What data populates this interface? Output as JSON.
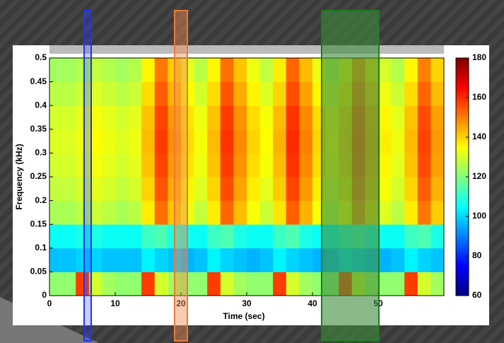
{
  "chart_data": {
    "type": "heatmap",
    "x_label": "Time (sec)",
    "y_label": "Frequency (kHz)",
    "x_bins": [
      0,
      2,
      4,
      6,
      8,
      10,
      12,
      14,
      16,
      18,
      20,
      22,
      24,
      26,
      28,
      30,
      32,
      34,
      36,
      38,
      40,
      42,
      44,
      46,
      48,
      50,
      52,
      54,
      56,
      58,
      60
    ],
    "y_bins": [
      0,
      0.05,
      0.1,
      0.15,
      0.2,
      0.25,
      0.3,
      0.35,
      0.4,
      0.45,
      0.5
    ],
    "z": [
      [
        122,
        122,
        158,
        130,
        124,
        122,
        122,
        158,
        130,
        124,
        122,
        122,
        158,
        130,
        124,
        122,
        122,
        158,
        130,
        124,
        122,
        122,
        156,
        130,
        124,
        122,
        122,
        158,
        130,
        124
      ],
      [
        98,
        98,
        100,
        100,
        98,
        98,
        98,
        104,
        100,
        98,
        96,
        98,
        104,
        100,
        98,
        96,
        98,
        104,
        100,
        98,
        96,
        98,
        102,
        100,
        98,
        96,
        98,
        104,
        100,
        98
      ],
      [
        106,
        106,
        108,
        108,
        106,
        106,
        106,
        112,
        114,
        108,
        106,
        106,
        112,
        114,
        108,
        106,
        106,
        112,
        114,
        108,
        106,
        106,
        110,
        112,
        108,
        106,
        106,
        112,
        114,
        108
      ],
      [
        125,
        125,
        127,
        129,
        127,
        125,
        127,
        137,
        152,
        142,
        133,
        128,
        137,
        153,
        143,
        134,
        129,
        138,
        154,
        144,
        134,
        129,
        135,
        147,
        139,
        131,
        127,
        137,
        151,
        141
      ],
      [
        128,
        128,
        130,
        132,
        130,
        128,
        130,
        140,
        155,
        145,
        136,
        131,
        140,
        156,
        146,
        137,
        132,
        141,
        157,
        147,
        137,
        132,
        138,
        150,
        142,
        134,
        130,
        140,
        154,
        144
      ],
      [
        130,
        130,
        132,
        134,
        132,
        130,
        132,
        142,
        157,
        147,
        138,
        133,
        142,
        158,
        148,
        139,
        134,
        143,
        159,
        149,
        139,
        134,
        140,
        152,
        144,
        136,
        132,
        142,
        156,
        146
      ],
      [
        131,
        131,
        133,
        135,
        133,
        131,
        133,
        143,
        158,
        148,
        139,
        134,
        143,
        159,
        149,
        140,
        135,
        144,
        160,
        150,
        140,
        135,
        141,
        153,
        145,
        137,
        133,
        143,
        157,
        147
      ],
      [
        130,
        130,
        132,
        134,
        132,
        130,
        132,
        142,
        157,
        147,
        138,
        133,
        142,
        158,
        148,
        139,
        134,
        143,
        159,
        149,
        139,
        134,
        140,
        152,
        144,
        136,
        132,
        142,
        156,
        146
      ],
      [
        127,
        127,
        129,
        131,
        129,
        127,
        129,
        139,
        154,
        144,
        135,
        130,
        139,
        155,
        145,
        136,
        131,
        140,
        156,
        146,
        136,
        131,
        137,
        149,
        141,
        133,
        129,
        139,
        153,
        143
      ],
      [
        124,
        124,
        126,
        128,
        126,
        124,
        126,
        136,
        151,
        141,
        132,
        127,
        136,
        152,
        142,
        133,
        128,
        137,
        153,
        143,
        133,
        128,
        134,
        146,
        138,
        130,
        126,
        136,
        150,
        140
      ]
    ],
    "colormap": "jet",
    "xlim": [
      0,
      60
    ],
    "xticks": [
      0,
      10,
      20,
      30,
      40,
      50
    ],
    "ylim": [
      0,
      0.5
    ],
    "yticks": [
      0,
      0.05,
      0.1,
      0.15,
      0.2,
      0.25,
      0.3,
      0.35,
      0.4,
      0.45,
      0.5
    ],
    "zlim": [
      60,
      180
    ],
    "zticks": [
      60,
      80,
      100,
      120,
      140,
      160,
      180
    ]
  }
}
